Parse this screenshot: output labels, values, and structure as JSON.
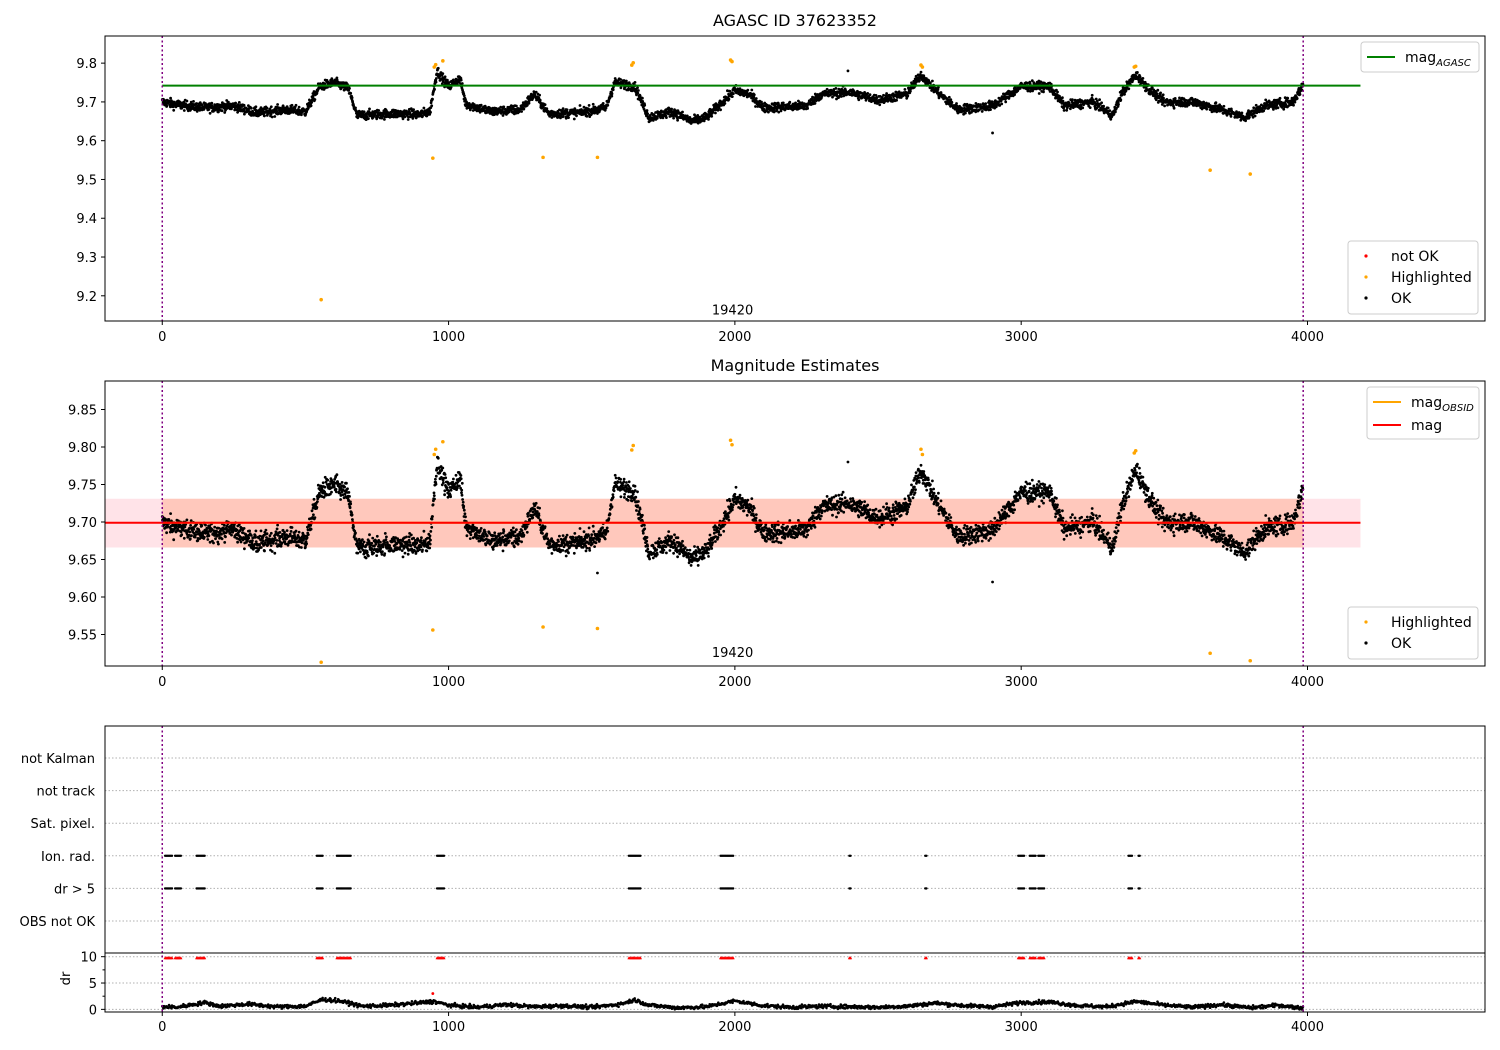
{
  "chart_data": [
    {
      "type": "scatter",
      "title": "AGASC ID 37623352",
      "xlim": [
        -200,
        4620
      ],
      "ylim": [
        9.135,
        9.87
      ],
      "x_ticks": [
        0,
        1000,
        2000,
        3000,
        4000
      ],
      "x_tick_labels": [
        "0",
        "1000",
        "2000",
        "3000",
        "4000"
      ],
      "y_ticks": [
        9.2,
        9.3,
        9.4,
        9.5,
        9.6,
        9.7,
        9.8
      ],
      "y_tick_labels": [
        "9.2",
        "9.3",
        "9.4",
        "9.5",
        "9.6",
        "9.7",
        "9.8"
      ],
      "obsid_boundaries": [
        0,
        3985
      ],
      "obsid_label": {
        "text": "19420",
        "x": 1992,
        "y": 9.165
      },
      "reference_lines": [
        {
          "name": "mag",
          "subscript": "AGASC",
          "y": 9.742,
          "x_range": [
            0,
            4185
          ],
          "color": "#008000"
        }
      ],
      "legend_upper": [
        {
          "label": "mag",
          "subscript": "AGASC",
          "color": "#008000"
        }
      ],
      "legend_lower": [
        {
          "label": "not OK",
          "color": "#ff0000"
        },
        {
          "label": "Highlighted",
          "color": "#ffa500"
        },
        {
          "label": "OK",
          "color": "#000000"
        }
      ],
      "series": [
        {
          "name": "OK",
          "color": "#000000",
          "trend": [
            [
              0,
              9.7
            ],
            [
              50,
              9.693
            ],
            [
              150,
              9.685
            ],
            [
              250,
              9.69
            ],
            [
              330,
              9.672
            ],
            [
              430,
              9.68
            ],
            [
              500,
              9.675
            ],
            [
              550,
              9.74
            ],
            [
              600,
              9.75
            ],
            [
              650,
              9.735
            ],
            [
              680,
              9.665
            ],
            [
              800,
              9.67
            ],
            [
              900,
              9.668
            ],
            [
              935,
              9.675
            ],
            [
              960,
              9.78
            ],
            [
              1000,
              9.74
            ],
            [
              1040,
              9.76
            ],
            [
              1060,
              9.695
            ],
            [
              1150,
              9.675
            ],
            [
              1250,
              9.68
            ],
            [
              1300,
              9.72
            ],
            [
              1350,
              9.67
            ],
            [
              1450,
              9.672
            ],
            [
              1550,
              9.685
            ],
            [
              1580,
              9.75
            ],
            [
              1650,
              9.74
            ],
            [
              1700,
              9.66
            ],
            [
              1780,
              9.675
            ],
            [
              1850,
              9.65
            ],
            [
              1900,
              9.66
            ],
            [
              2000,
              9.73
            ],
            [
              2050,
              9.72
            ],
            [
              2100,
              9.685
            ],
            [
              2250,
              9.69
            ],
            [
              2300,
              9.72
            ],
            [
              2400,
              9.725
            ],
            [
              2500,
              9.705
            ],
            [
              2600,
              9.72
            ],
            [
              2650,
              9.77
            ],
            [
              2700,
              9.73
            ],
            [
              2780,
              9.68
            ],
            [
              2900,
              9.69
            ],
            [
              3000,
              9.74
            ],
            [
              3100,
              9.74
            ],
            [
              3150,
              9.69
            ],
            [
              3250,
              9.7
            ],
            [
              3320,
              9.665
            ],
            [
              3350,
              9.72
            ],
            [
              3400,
              9.77
            ],
            [
              3450,
              9.73
            ],
            [
              3500,
              9.7
            ],
            [
              3600,
              9.7
            ],
            [
              3700,
              9.68
            ],
            [
              3780,
              9.66
            ],
            [
              3850,
              9.69
            ],
            [
              3950,
              9.7
            ],
            [
              3985,
              9.745
            ]
          ],
          "noise": 0.012
        },
        {
          "name": "Highlighted",
          "color": "#ffa500",
          "points": [
            [
              555,
              9.19
            ],
            [
              945,
              9.555
            ],
            [
              950,
              9.79
            ],
            [
              955,
              9.796
            ],
            [
              980,
              9.806
            ],
            [
              1330,
              9.557
            ],
            [
              1520,
              9.557
            ],
            [
              1640,
              9.795
            ],
            [
              1645,
              9.801
            ],
            [
              1985,
              9.808
            ],
            [
              1990,
              9.804
            ],
            [
              2650,
              9.795
            ],
            [
              2655,
              9.79
            ],
            [
              3395,
              9.79
            ],
            [
              3400,
              9.792
            ],
            [
              3660,
              9.524
            ],
            [
              3800,
              9.514
            ]
          ]
        },
        {
          "name": "not OK",
          "color": "#ff0000",
          "points": []
        }
      ]
    },
    {
      "type": "scatter",
      "title": "Magnitude Estimates",
      "xlim": [
        -200,
        4620
      ],
      "ylim": [
        9.508,
        9.888
      ],
      "x_ticks": [
        0,
        1000,
        2000,
        3000,
        4000
      ],
      "x_tick_labels": [
        "0",
        "1000",
        "2000",
        "3000",
        "4000"
      ],
      "y_ticks": [
        9.55,
        9.6,
        9.65,
        9.7,
        9.75,
        9.8,
        9.85
      ],
      "y_tick_labels": [
        "9.55",
        "9.60",
        "9.65",
        "9.70",
        "9.75",
        "9.80",
        "9.85"
      ],
      "obsid_boundaries": [
        0,
        3985
      ],
      "obsid_label": {
        "text": "19420",
        "x": 1992,
        "y": 9.527
      },
      "bands": [
        {
          "y_range": [
            9.666,
            9.731
          ],
          "x_range": [
            -200,
            4185
          ],
          "color": "#ffc0cb",
          "opacity": 0.45
        },
        {
          "y_range": [
            9.666,
            9.731
          ],
          "x_range": [
            0,
            3985
          ],
          "color": "#ffa07a",
          "opacity": 0.4
        }
      ],
      "reference_lines": [
        {
          "name": "mag",
          "subscript": "OBSID",
          "y": 9.699,
          "x_range": [
            0,
            3985
          ],
          "color": "#ffa500"
        },
        {
          "name": "mag",
          "y": 9.699,
          "x_range": [
            -200,
            4185
          ],
          "color": "#ff0000"
        }
      ],
      "legend_upper": [
        {
          "label": "mag",
          "subscript": "OBSID",
          "color": "#ffa500"
        },
        {
          "label": "mag",
          "color": "#ff0000"
        }
      ],
      "legend_lower": [
        {
          "label": "Highlighted",
          "color": "#ffa500"
        },
        {
          "label": "OK",
          "color": "#000000"
        }
      ],
      "series": [
        {
          "name": "OK",
          "color": "#000000",
          "same_as_panel": 0,
          "noise": 0.013
        },
        {
          "name": "Highlighted",
          "color": "#ffa500",
          "points": [
            [
              555,
              9.513
            ],
            [
              945,
              9.556
            ],
            [
              950,
              9.79
            ],
            [
              955,
              9.797
            ],
            [
              980,
              9.807
            ],
            [
              1330,
              9.56
            ],
            [
              1520,
              9.558
            ],
            [
              1640,
              9.796
            ],
            [
              1645,
              9.802
            ],
            [
              1985,
              9.809
            ],
            [
              1990,
              9.803
            ],
            [
              2650,
              9.797
            ],
            [
              2655,
              9.79
            ],
            [
              3395,
              9.792
            ],
            [
              3400,
              9.795
            ],
            [
              3660,
              9.525
            ],
            [
              3800,
              9.515
            ]
          ]
        }
      ]
    },
    {
      "type": "scatter",
      "title": "",
      "xlim": [
        -200,
        4620
      ],
      "flag_labels": [
        "not Kalman",
        "not track",
        "Sat. pixel.",
        "Ion. rad.",
        "dr > 5",
        "OBS not OK"
      ],
      "obsid_boundaries": [
        0,
        3985
      ],
      "flag_events": {
        "Ion. rad.": [
          [
            10,
            35
          ],
          [
            45,
            65
          ],
          [
            120,
            150
          ],
          [
            540,
            560
          ],
          [
            610,
            660
          ],
          [
            960,
            985
          ],
          [
            1630,
            1670
          ],
          [
            1950,
            1995
          ],
          [
            2400,
            2405
          ],
          [
            2665,
            2670
          ],
          [
            2990,
            3010
          ],
          [
            3030,
            3050
          ],
          [
            3060,
            3080
          ],
          [
            3375,
            3390
          ],
          [
            3410,
            3415
          ]
        ],
        "dr > 5": [
          [
            10,
            35
          ],
          [
            45,
            65
          ],
          [
            120,
            150
          ],
          [
            540,
            560
          ],
          [
            610,
            660
          ],
          [
            960,
            985
          ],
          [
            1630,
            1670
          ],
          [
            1950,
            1995
          ],
          [
            2400,
            2405
          ],
          [
            2665,
            2670
          ],
          [
            2990,
            3010
          ],
          [
            3030,
            3050
          ],
          [
            3060,
            3080
          ],
          [
            3375,
            3390
          ],
          [
            3410,
            3415
          ]
        ]
      },
      "dr_axis": {
        "ylabel": "dr",
        "ylim": [
          -0.5,
          10.7
        ],
        "y_ticks": [
          0,
          5,
          10
        ],
        "y_tick_labels": [
          "0",
          "5",
          "10"
        ],
        "capped_points": {
          "y": 9.8,
          "color": "#ff0000",
          "ranges": [
            [
              10,
              35
            ],
            [
              45,
              65
            ],
            [
              120,
              150
            ],
            [
              540,
              560
            ],
            [
              610,
              660
            ],
            [
              960,
              985
            ],
            [
              1630,
              1670
            ],
            [
              1950,
              1995
            ],
            [
              2400,
              2405
            ],
            [
              2665,
              2670
            ],
            [
              2990,
              3010
            ],
            [
              3030,
              3050
            ],
            [
              3060,
              3080
            ],
            [
              3375,
              3390
            ],
            [
              3410,
              3415
            ]
          ]
        },
        "outlier": {
          "x": 945,
          "y": 3.0,
          "color": "#ff0000"
        },
        "trend": [
          [
            0,
            0.5
          ],
          [
            50,
            0.4
          ],
          [
            150,
            1.3
          ],
          [
            200,
            0.6
          ],
          [
            300,
            1.0
          ],
          [
            400,
            0.5
          ],
          [
            500,
            0.6
          ],
          [
            560,
            1.9
          ],
          [
            620,
            1.6
          ],
          [
            700,
            0.6
          ],
          [
            800,
            0.8
          ],
          [
            950,
            1.5
          ],
          [
            1000,
            0.8
          ],
          [
            1100,
            0.4
          ],
          [
            1200,
            0.9
          ],
          [
            1300,
            0.5
          ],
          [
            1400,
            0.7
          ],
          [
            1500,
            0.4
          ],
          [
            1600,
            1.0
          ],
          [
            1650,
            1.8
          ],
          [
            1700,
            0.8
          ],
          [
            1800,
            0.3
          ],
          [
            1900,
            0.5
          ],
          [
            2000,
            1.6
          ],
          [
            2100,
            0.7
          ],
          [
            2200,
            0.4
          ],
          [
            2300,
            0.6
          ],
          [
            2400,
            0.5
          ],
          [
            2500,
            0.4
          ],
          [
            2600,
            0.6
          ],
          [
            2700,
            1.2
          ],
          [
            2800,
            0.7
          ],
          [
            2900,
            0.5
          ],
          [
            3000,
            1.3
          ],
          [
            3100,
            1.4
          ],
          [
            3200,
            0.7
          ],
          [
            3300,
            0.5
          ],
          [
            3400,
            1.5
          ],
          [
            3500,
            0.8
          ],
          [
            3600,
            0.4
          ],
          [
            3700,
            0.9
          ],
          [
            3800,
            0.3
          ],
          [
            3900,
            0.8
          ],
          [
            3985,
            0.2
          ]
        ]
      }
    }
  ]
}
